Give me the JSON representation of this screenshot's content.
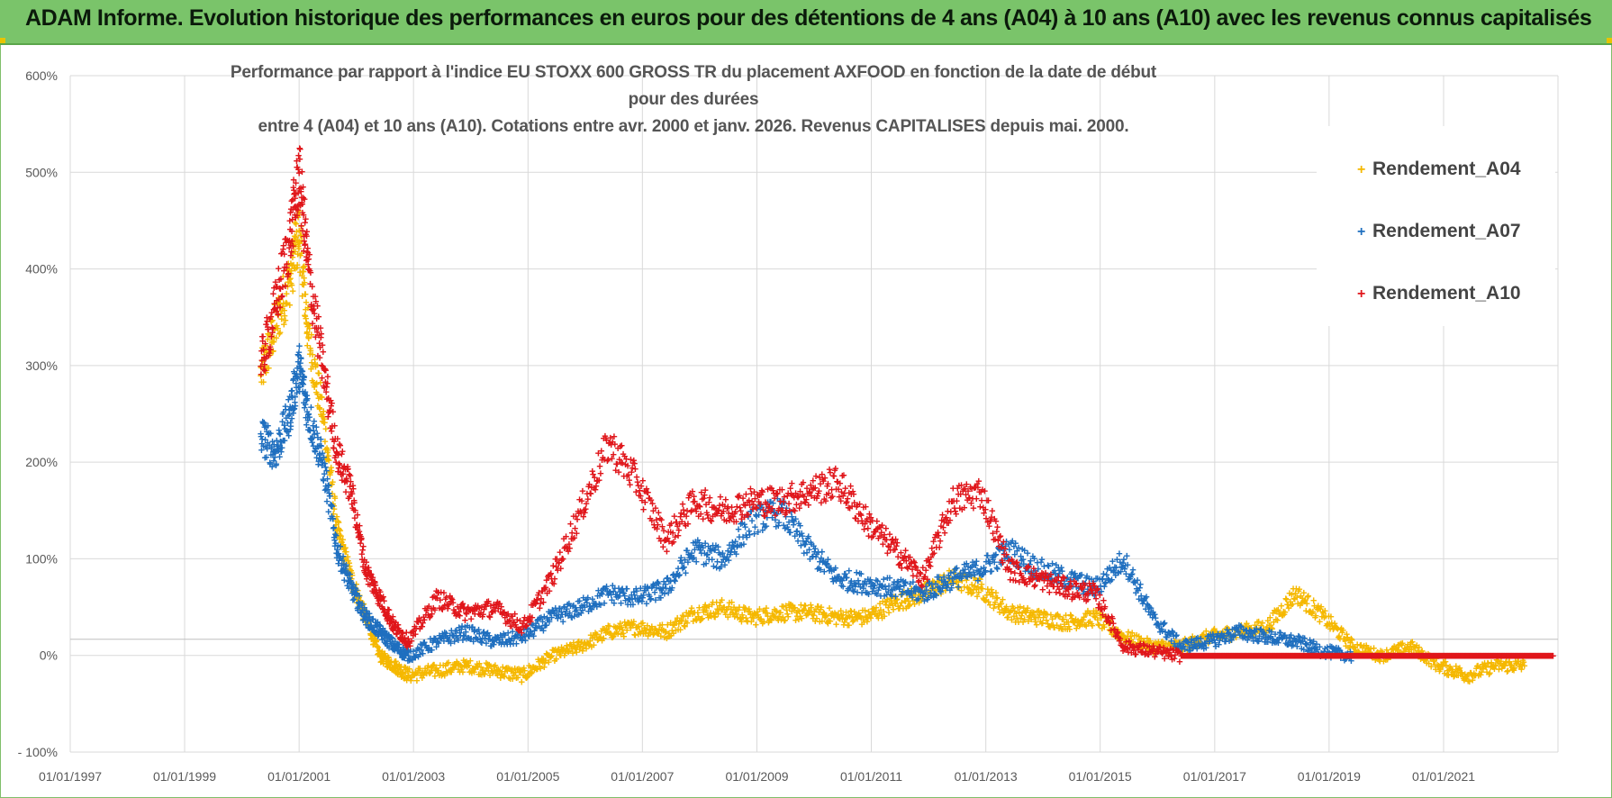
{
  "banner": {
    "title": "ADAM Informe. Evolution historique des performances en euros pour des détentions de 4 ans (A04) à 10 ans (A10) avec les revenus connus capitalisés"
  },
  "colors": {
    "banner": "#7ac46a",
    "A04": "#f5b800",
    "A07": "#1f6fbf",
    "A10": "#e0161b"
  },
  "chart_data": {
    "type": "scatter",
    "title_line1": "Performance par rapport à l'indice EU STOXX 600 GROSS TR  du placement AXFOOD en fonction de la date de début pour des durées",
    "title_line2": "entre 4 (A04) et 10 ans (A10).  Cotations entre avr. 2000 et janv. 2026. Revenus CAPITALISES depuis mai. 2000.",
    "x_axis": {
      "type": "date",
      "range": [
        "1997-01-01",
        "2023-01-01"
      ],
      "tick_labels": [
        "01/01/1997",
        "01/01/1999",
        "01/01/2001",
        "01/01/2003",
        "01/01/2005",
        "01/01/2007",
        "01/01/2009",
        "01/01/2011",
        "01/01/2013",
        "01/01/2015",
        "01/01/2017",
        "01/01/2019",
        "01/01/2021"
      ]
    },
    "y_axis": {
      "unit": "%",
      "range": [
        -100,
        600
      ],
      "ticks": [
        -100,
        0,
        100,
        200,
        300,
        400,
        500,
        600
      ],
      "tick_labels": [
        "- 100%",
        "0%",
        "100%",
        "200%",
        "300%",
        "400%",
        "500%",
        "600%"
      ]
    },
    "grid": true,
    "legend_position": "top-right",
    "series": [
      {
        "name": "Rendement_A04",
        "color": "#f5b800",
        "marker": "+",
        "points": [
          [
            "2000-05-01",
            290
          ],
          [
            "2000-08-01",
            340
          ],
          [
            "2000-11-01",
            390
          ],
          [
            "2001-01-01",
            440
          ],
          [
            "2001-03-01",
            330
          ],
          [
            "2001-06-01",
            250
          ],
          [
            "2001-09-01",
            130
          ],
          [
            "2001-12-01",
            80
          ],
          [
            "2002-03-01",
            40
          ],
          [
            "2002-06-01",
            0
          ],
          [
            "2002-09-01",
            -10
          ],
          [
            "2002-12-01",
            -20
          ],
          [
            "2003-06-01",
            -15
          ],
          [
            "2003-12-01",
            -10
          ],
          [
            "2004-06-01",
            -15
          ],
          [
            "2004-12-01",
            -20
          ],
          [
            "2005-06-01",
            0
          ],
          [
            "2005-12-01",
            10
          ],
          [
            "2006-06-01",
            25
          ],
          [
            "2006-12-01",
            30
          ],
          [
            "2007-06-01",
            25
          ],
          [
            "2007-12-01",
            45
          ],
          [
            "2008-06-01",
            50
          ],
          [
            "2008-12-01",
            40
          ],
          [
            "2009-06-01",
            45
          ],
          [
            "2009-12-01",
            45
          ],
          [
            "2010-06-01",
            40
          ],
          [
            "2010-12-01",
            40
          ],
          [
            "2011-06-01",
            55
          ],
          [
            "2011-12-01",
            65
          ],
          [
            "2012-06-01",
            80
          ],
          [
            "2012-12-01",
            70
          ],
          [
            "2013-06-01",
            45
          ],
          [
            "2013-12-01",
            40
          ],
          [
            "2014-06-01",
            35
          ],
          [
            "2014-12-01",
            40
          ],
          [
            "2015-06-01",
            20
          ],
          [
            "2015-12-01",
            10
          ],
          [
            "2016-06-01",
            10
          ],
          [
            "2016-12-01",
            20
          ],
          [
            "2017-06-01",
            25
          ],
          [
            "2017-12-01",
            30
          ],
          [
            "2018-06-01",
            65
          ],
          [
            "2018-12-01",
            40
          ],
          [
            "2019-06-01",
            10
          ],
          [
            "2019-12-01",
            0
          ],
          [
            "2020-06-01",
            10
          ],
          [
            "2020-12-01",
            -10
          ],
          [
            "2021-06-01",
            -20
          ],
          [
            "2021-12-01",
            -10
          ],
          [
            "2022-06-01",
            -10
          ]
        ]
      },
      {
        "name": "Rendement_A07",
        "color": "#1f6fbf",
        "marker": "+",
        "points": [
          [
            "2000-05-01",
            230
          ],
          [
            "2000-08-01",
            210
          ],
          [
            "2000-11-01",
            250
          ],
          [
            "2001-01-01",
            300
          ],
          [
            "2001-03-01",
            250
          ],
          [
            "2001-06-01",
            200
          ],
          [
            "2001-09-01",
            110
          ],
          [
            "2001-12-01",
            70
          ],
          [
            "2002-03-01",
            40
          ],
          [
            "2002-06-01",
            25
          ],
          [
            "2002-09-01",
            10
          ],
          [
            "2002-12-01",
            0
          ],
          [
            "2003-06-01",
            15
          ],
          [
            "2003-12-01",
            25
          ],
          [
            "2004-06-01",
            15
          ],
          [
            "2004-12-01",
            20
          ],
          [
            "2005-06-01",
            40
          ],
          [
            "2005-12-01",
            50
          ],
          [
            "2006-06-01",
            65
          ],
          [
            "2006-12-01",
            60
          ],
          [
            "2007-06-01",
            70
          ],
          [
            "2007-12-01",
            110
          ],
          [
            "2008-06-01",
            100
          ],
          [
            "2008-12-01",
            140
          ],
          [
            "2009-06-01",
            150
          ],
          [
            "2009-12-01",
            110
          ],
          [
            "2010-06-01",
            80
          ],
          [
            "2010-12-01",
            75
          ],
          [
            "2011-06-01",
            70
          ],
          [
            "2011-12-01",
            65
          ],
          [
            "2012-06-01",
            80
          ],
          [
            "2012-12-01",
            90
          ],
          [
            "2013-06-01",
            110
          ],
          [
            "2013-12-01",
            90
          ],
          [
            "2014-06-01",
            80
          ],
          [
            "2014-12-01",
            70
          ],
          [
            "2015-06-01",
            100
          ],
          [
            "2015-12-01",
            40
          ],
          [
            "2016-06-01",
            10
          ],
          [
            "2016-12-01",
            15
          ],
          [
            "2017-06-01",
            25
          ],
          [
            "2017-12-01",
            20
          ],
          [
            "2018-06-01",
            15
          ],
          [
            "2018-12-01",
            5
          ],
          [
            "2019-06-01",
            0
          ]
        ]
      },
      {
        "name": "Rendement_A10",
        "color": "#e0161b",
        "marker": "+",
        "points": [
          [
            "2000-05-01",
            300
          ],
          [
            "2000-08-01",
            360
          ],
          [
            "2000-11-01",
            430
          ],
          [
            "2001-01-01",
            500
          ],
          [
            "2001-03-01",
            400
          ],
          [
            "2001-06-01",
            300
          ],
          [
            "2001-09-01",
            210
          ],
          [
            "2001-12-01",
            170
          ],
          [
            "2002-03-01",
            90
          ],
          [
            "2002-06-01",
            60
          ],
          [
            "2002-09-01",
            30
          ],
          [
            "2002-12-01",
            15
          ],
          [
            "2003-06-01",
            60
          ],
          [
            "2003-12-01",
            45
          ],
          [
            "2004-06-01",
            50
          ],
          [
            "2004-12-01",
            30
          ],
          [
            "2005-06-01",
            80
          ],
          [
            "2005-12-01",
            150
          ],
          [
            "2006-06-01",
            220
          ],
          [
            "2006-12-01",
            180
          ],
          [
            "2007-06-01",
            120
          ],
          [
            "2007-12-01",
            160
          ],
          [
            "2008-06-01",
            150
          ],
          [
            "2008-12-01",
            160
          ],
          [
            "2009-06-01",
            160
          ],
          [
            "2009-12-01",
            170
          ],
          [
            "2010-06-01",
            180
          ],
          [
            "2010-12-01",
            140
          ],
          [
            "2011-06-01",
            110
          ],
          [
            "2011-12-01",
            80
          ],
          [
            "2012-06-01",
            160
          ],
          [
            "2012-12-01",
            170
          ],
          [
            "2013-06-01",
            90
          ],
          [
            "2013-12-01",
            80
          ],
          [
            "2014-06-01",
            70
          ],
          [
            "2014-12-01",
            65
          ],
          [
            "2015-06-01",
            10
          ],
          [
            "2015-12-01",
            5
          ],
          [
            "2016-06-01",
            0
          ],
          [
            "2016-12-01",
            0
          ],
          [
            "2017-06-01",
            0
          ],
          [
            "2017-12-01",
            0
          ],
          [
            "2018-06-01",
            0
          ],
          [
            "2018-12-01",
            0
          ],
          [
            "2019-06-01",
            0
          ],
          [
            "2019-12-01",
            0
          ],
          [
            "2020-06-01",
            0
          ],
          [
            "2020-12-01",
            0
          ],
          [
            "2021-06-01",
            0
          ],
          [
            "2021-12-01",
            0
          ],
          [
            "2022-06-01",
            0
          ],
          [
            "2022-12-01",
            0
          ]
        ]
      }
    ]
  }
}
